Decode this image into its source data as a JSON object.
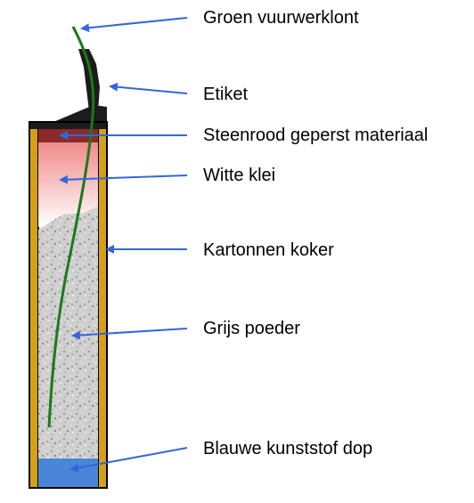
{
  "labels": {
    "fuse": "Groen vuurwerklont",
    "label": "Etiket",
    "pressed_material": "Steenrood geperst materiaal",
    "white_clay": "Witte klei",
    "cardboard_tube": "Kartonnen koker",
    "gray_powder": "Grijs poeder",
    "plastic_cap": "Blauwe kunststof dop"
  },
  "colors": {
    "arrow": "#3366dd",
    "fuse": "#1a7a1a",
    "tube_wall": "#d4a017",
    "outline": "#000000",
    "label_paper": "#1c1c1c",
    "pressed_material": "#8b2a2a",
    "clay_top": "#f08a8a",
    "clay_bottom": "#ffffff",
    "powder": "#c8c8c8",
    "cap": "#4a86d8"
  }
}
